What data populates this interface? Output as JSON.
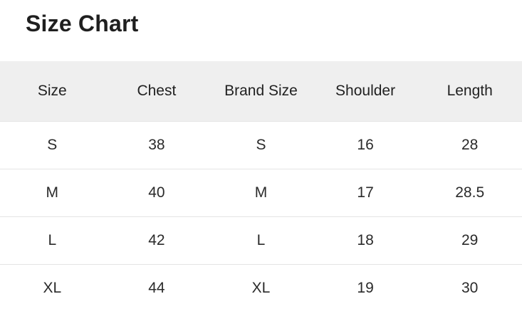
{
  "page": {
    "title": "Size Chart"
  },
  "table": {
    "columns": [
      "Size",
      "Chest",
      "Brand Size",
      "Shoulder",
      "Length"
    ],
    "rows": [
      [
        "S",
        "38",
        "S",
        "16",
        "28"
      ],
      [
        "M",
        "40",
        "M",
        "17",
        "28.5"
      ],
      [
        "L",
        "42",
        "L",
        "18",
        "29"
      ],
      [
        "XL",
        "44",
        "XL",
        "19",
        "30"
      ]
    ]
  },
  "colors": {
    "header_bg": "#efefef",
    "divider": "#e4e4e4",
    "title_text": "#1f1f1f",
    "cell_text": "#2a2a2a"
  }
}
